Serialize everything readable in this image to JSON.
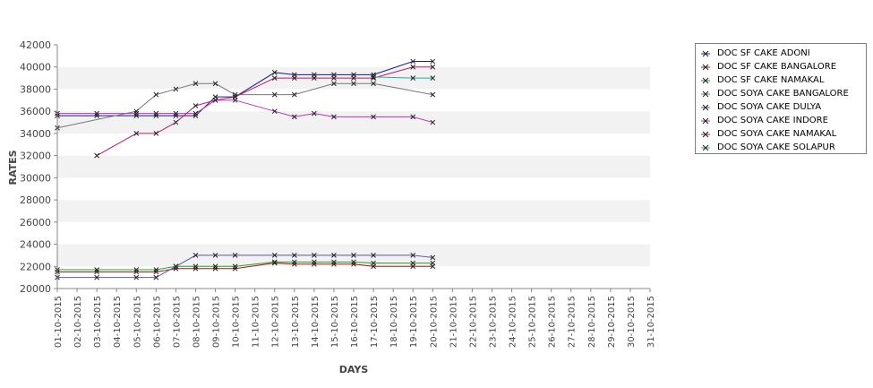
{
  "chart_data": {
    "type": "line",
    "title": "",
    "xlabel": "DAYS",
    "ylabel": "RATES",
    "ylim": [
      20000,
      42000
    ],
    "yticks": [
      20000,
      22000,
      24000,
      26000,
      28000,
      30000,
      32000,
      34000,
      36000,
      38000,
      40000,
      42000
    ],
    "grid": "alternating horizontal bands",
    "legend_position": "right",
    "categories": [
      "01-10-2015",
      "02-10-2015",
      "03-10-2015",
      "04-10-2015",
      "05-10-2015",
      "06-10-2015",
      "07-10-2015",
      "08-10-2015",
      "09-10-2015",
      "10-10-2015",
      "11-10-2015",
      "12-10-2015",
      "13-10-2015",
      "14-10-2015",
      "15-10-2015",
      "16-10-2015",
      "17-10-2015",
      "18-10-2015",
      "19-10-2015",
      "20-10-2015",
      "21-10-2015",
      "22-10-2015",
      "23-10-2015",
      "24-10-2015",
      "25-10-2015",
      "26-10-2015",
      "27-10-2015",
      "28-10-2015",
      "29-10-2015",
      "30-10-2015",
      "31-10-2015"
    ],
    "series": [
      {
        "name": "DOC SF CAKE ADONI",
        "color": "#1a1a8c",
        "points": [
          [
            "01-10-2015",
            35600
          ],
          [
            "03-10-2015",
            35600
          ],
          [
            "05-10-2015",
            35600
          ],
          [
            "06-10-2015",
            35600
          ],
          [
            "07-10-2015",
            35600
          ],
          [
            "08-10-2015",
            35600
          ],
          [
            "09-10-2015",
            37300
          ],
          [
            "10-10-2015",
            37300
          ],
          [
            "12-10-2015",
            39500
          ],
          [
            "13-10-2015",
            39300
          ],
          [
            "14-10-2015",
            39300
          ],
          [
            "15-10-2015",
            39300
          ],
          [
            "16-10-2015",
            39300
          ],
          [
            "17-10-2015",
            39300
          ],
          [
            "19-10-2015",
            40500
          ],
          [
            "20-10-2015",
            40500
          ]
        ]
      },
      {
        "name": "DOC SF CAKE BANGALORE",
        "color": "#a01818",
        "points": [
          [
            "01-10-2015",
            21500
          ],
          [
            "03-10-2015",
            21500
          ],
          [
            "05-10-2015",
            21500
          ],
          [
            "06-10-2015",
            21500
          ],
          [
            "07-10-2015",
            21800
          ],
          [
            "08-10-2015",
            21800
          ],
          [
            "09-10-2015",
            21800
          ],
          [
            "10-10-2015",
            21800
          ],
          [
            "12-10-2015",
            22300
          ],
          [
            "13-10-2015",
            22200
          ],
          [
            "14-10-2015",
            22200
          ],
          [
            "15-10-2015",
            22200
          ],
          [
            "16-10-2015",
            22200
          ],
          [
            "17-10-2015",
            22000
          ],
          [
            "19-10-2015",
            22000
          ],
          [
            "20-10-2015",
            22000
          ]
        ]
      },
      {
        "name": "DOC SF CAKE NAMAKAL",
        "color": "#2b9a2b",
        "points": [
          [
            "01-10-2015",
            21700
          ],
          [
            "03-10-2015",
            21700
          ],
          [
            "05-10-2015",
            21700
          ],
          [
            "06-10-2015",
            21700
          ],
          [
            "07-10-2015",
            22000
          ],
          [
            "08-10-2015",
            22000
          ],
          [
            "09-10-2015",
            22000
          ],
          [
            "10-10-2015",
            22000
          ],
          [
            "12-10-2015",
            22400
          ],
          [
            "13-10-2015",
            22400
          ],
          [
            "14-10-2015",
            22400
          ],
          [
            "15-10-2015",
            22400
          ],
          [
            "16-10-2015",
            22400
          ],
          [
            "17-10-2015",
            22300
          ],
          [
            "19-10-2015",
            22300
          ],
          [
            "20-10-2015",
            22300
          ]
        ]
      },
      {
        "name": "DOC SOYA CAKE BANGALORE",
        "color": "#777777",
        "points": [
          [
            "01-10-2015",
            34500
          ],
          [
            "05-10-2015",
            36000
          ],
          [
            "06-10-2015",
            37500
          ],
          [
            "07-10-2015",
            38000
          ],
          [
            "08-10-2015",
            38500
          ],
          [
            "09-10-2015",
            38500
          ],
          [
            "10-10-2015",
            37500
          ],
          [
            "12-10-2015",
            37500
          ],
          [
            "13-10-2015",
            37500
          ],
          [
            "15-10-2015",
            38500
          ],
          [
            "16-10-2015",
            38500
          ],
          [
            "17-10-2015",
            38500
          ],
          [
            "20-10-2015",
            37500
          ]
        ]
      },
      {
        "name": "DOC SOYA CAKE DULYA",
        "color": "#5a5aa8",
        "points": [
          [
            "01-10-2015",
            21000
          ],
          [
            "03-10-2015",
            21000
          ],
          [
            "05-10-2015",
            21000
          ],
          [
            "06-10-2015",
            21000
          ],
          [
            "07-10-2015",
            22000
          ],
          [
            "08-10-2015",
            23000
          ],
          [
            "09-10-2015",
            23000
          ],
          [
            "10-10-2015",
            23000
          ],
          [
            "12-10-2015",
            23000
          ],
          [
            "13-10-2015",
            23000
          ],
          [
            "14-10-2015",
            23000
          ],
          [
            "15-10-2015",
            23000
          ],
          [
            "16-10-2015",
            23000
          ],
          [
            "17-10-2015",
            23000
          ],
          [
            "19-10-2015",
            23000
          ],
          [
            "20-10-2015",
            22800
          ]
        ]
      },
      {
        "name": "DOC SOYA CAKE INDORE",
        "color": "#bb33bb",
        "points": [
          [
            "01-10-2015",
            35800
          ],
          [
            "03-10-2015",
            35800
          ],
          [
            "05-10-2015",
            35800
          ],
          [
            "06-10-2015",
            35800
          ],
          [
            "07-10-2015",
            35800
          ],
          [
            "08-10-2015",
            35800
          ],
          [
            "09-10-2015",
            37000
          ],
          [
            "10-10-2015",
            37000
          ],
          [
            "12-10-2015",
            36000
          ],
          [
            "13-10-2015",
            35500
          ],
          [
            "14-10-2015",
            35800
          ],
          [
            "15-10-2015",
            35500
          ],
          [
            "17-10-2015",
            35500
          ],
          [
            "19-10-2015",
            35500
          ],
          [
            "20-10-2015",
            35000
          ]
        ]
      },
      {
        "name": "DOC SOYA CAKE NAMAKAL",
        "color": "#c0186a",
        "points": [
          [
            "03-10-2015",
            32000
          ],
          [
            "05-10-2015",
            34000
          ],
          [
            "06-10-2015",
            34000
          ],
          [
            "07-10-2015",
            35000
          ],
          [
            "08-10-2015",
            36500
          ],
          [
            "09-10-2015",
            37000
          ],
          [
            "10-10-2015",
            37300
          ],
          [
            "12-10-2015",
            39000
          ],
          [
            "13-10-2015",
            39000
          ],
          [
            "14-10-2015",
            39000
          ],
          [
            "15-10-2015",
            39000
          ],
          [
            "16-10-2015",
            39000
          ],
          [
            "17-10-2015",
            39000
          ],
          [
            "19-10-2015",
            40000
          ],
          [
            "20-10-2015",
            40000
          ]
        ]
      },
      {
        "name": "DOC SOYA CAKE SOLAPUR",
        "color": "#22b09a",
        "points": [
          [
            "17-10-2015",
            39100
          ],
          [
            "19-10-2015",
            39000
          ],
          [
            "20-10-2015",
            39000
          ]
        ]
      }
    ]
  }
}
